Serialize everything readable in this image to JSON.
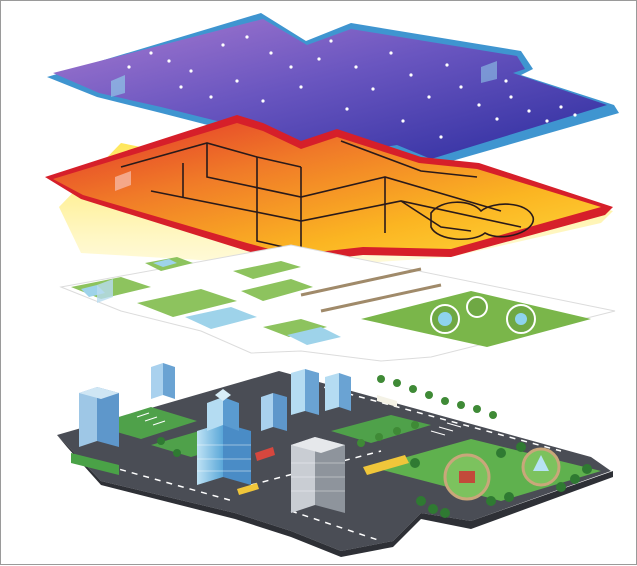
{
  "figure": {
    "layers": [
      {
        "id": "night-sky-layer",
        "color_top": "#3a3aa8",
        "color_bottom": "#8a5fc0",
        "edge": "#2a86c8"
      },
      {
        "id": "heat-floorplan-layer",
        "color_top": "#e23a2a",
        "color_bottom": "#ffd21c",
        "edge": "#d81f2a"
      },
      {
        "id": "site-plan-layer",
        "color_top": "#ffffff",
        "accent": "#7ab64a"
      },
      {
        "id": "city-base-layer",
        "color_top": "#4a4d55",
        "accent": "#4fa14a"
      }
    ]
  }
}
